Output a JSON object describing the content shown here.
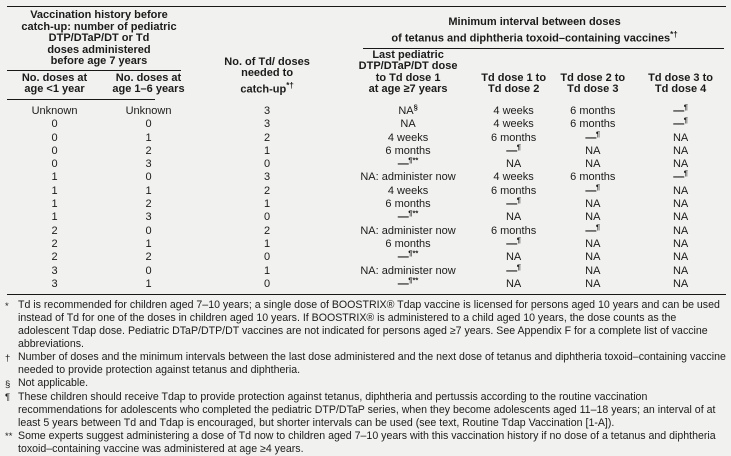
{
  "document": {
    "background_color": "#f1f2ef",
    "text_color": "#1b1b1b"
  },
  "table": {
    "left_group": {
      "title": "Vaccination history before\ncatch-up: number of pediatric\nDTP/DTaP/DT or Td\ndoses administered\nbefore age 7 years",
      "columns": [
        {
          "label": "No. doses at\nage <1 year"
        },
        {
          "label": "No. doses at\nage 1–6 years"
        }
      ]
    },
    "middle_column": {
      "label": "No. of Td/ doses\nneeded to\ncatch-up",
      "marker": "*†"
    },
    "right_group": {
      "title_line1": "Minimum interval between doses",
      "title_line2": "of tetanus and diphtheria toxoid–containing vaccines",
      "marker": "*†",
      "columns": [
        {
          "label": "Last pediatric\nDTP/DTaP/DT dose\nto Td dose 1\nat age ≥7 years"
        },
        {
          "label": "Td dose 1 to\nTd dose 2"
        },
        {
          "label": "Td dose 2 to\nTd dose 3"
        },
        {
          "label": "Td dose 3 to\nTd dose 4"
        }
      ]
    },
    "rows": [
      [
        "Unknown",
        "Unknown",
        "3",
        {
          "text": "NA",
          "sup": "§"
        },
        "4 weeks",
        "6 months",
        {
          "text": "—",
          "sup": "¶"
        }
      ],
      [
        "0",
        "0",
        "3",
        "NA",
        "4 weeks",
        "6 months",
        {
          "text": "—",
          "sup": "¶"
        }
      ],
      [
        "0",
        "1",
        "2",
        "4 weeks",
        "6 months",
        {
          "text": "—",
          "sup": "¶"
        },
        "NA"
      ],
      [
        "0",
        "2",
        "1",
        "6 months",
        {
          "text": "—",
          "sup": "¶"
        },
        "NA",
        "NA"
      ],
      [
        "0",
        "3",
        "0",
        {
          "text": "—",
          "sup": "¶**"
        },
        "NA",
        "NA",
        "NA"
      ],
      [
        "1",
        "0",
        "3",
        "NA: administer now",
        "4 weeks",
        "6 months",
        {
          "text": "—",
          "sup": "¶"
        }
      ],
      [
        "1",
        "1",
        "2",
        "4 weeks",
        "6 months",
        {
          "text": "—",
          "sup": "¶"
        },
        "NA"
      ],
      [
        "1",
        "2",
        "1",
        "6 months",
        {
          "text": "—",
          "sup": "¶"
        },
        "NA",
        "NA"
      ],
      [
        "1",
        "3",
        "0",
        {
          "text": "—",
          "sup": "¶**"
        },
        "NA",
        "NA",
        "NA"
      ],
      [
        "2",
        "0",
        "2",
        "NA: administer now",
        "6 months",
        {
          "text": "—",
          "sup": "¶"
        },
        "NA"
      ],
      [
        "2",
        "1",
        "1",
        "6 months",
        {
          "text": "—",
          "sup": "¶"
        },
        "NA",
        "NA"
      ],
      [
        "2",
        "2",
        "0",
        {
          "text": "—",
          "sup": "¶**"
        },
        "NA",
        "NA",
        "NA"
      ],
      [
        "3",
        "0",
        "1",
        "NA: administer now",
        {
          "text": "—",
          "sup": "¶"
        },
        "NA",
        "NA"
      ],
      [
        "3",
        "1",
        "0",
        {
          "text": "—",
          "sup": "¶**"
        },
        "NA",
        "NA",
        "NA"
      ]
    ]
  },
  "footnotes": [
    {
      "marker": "*",
      "text": "Td is recommended for children aged 7–10 years; a single dose of BOOSTRIX® Tdap vaccine is licensed for persons aged 10 years and can be used instead of Td for one of the doses in children aged 10 years. If BOOSTRIX® is administered to a child aged 10 years, the dose counts as the adolescent Tdap dose. Pediatric DTaP/DTP/DT vaccines are not indicated for persons aged ≥7 years. See Appendix F for a complete list of vaccine abbreviations."
    },
    {
      "marker": "†",
      "text": "Number of doses and the minimum intervals between the last dose administered and the next dose of tetanus and diphtheria toxoid–containing vaccine needed to provide protection against tetanus and diphtheria."
    },
    {
      "marker": "§",
      "text": "Not applicable."
    },
    {
      "marker": "¶",
      "text": "These children should receive Tdap to provide protection against tetanus, diphtheria and pertussis according to the routine vaccination recommendations for adolescents who completed the pediatric DTP/DTaP series, when they become adolescents aged 11–18 years; an interval of at least 5 years between Td and Tdap is encouraged, but shorter intervals can be used (see text, Routine Tdap Vaccination [1-A])."
    },
    {
      "marker": "**",
      "text": "Some experts suggest administering a dose of Td now to children aged 7–10 years with this vaccination history if no dose of a tetanus and diphtheria toxoid–containing vaccine was administered at age ≥4 years."
    }
  ]
}
